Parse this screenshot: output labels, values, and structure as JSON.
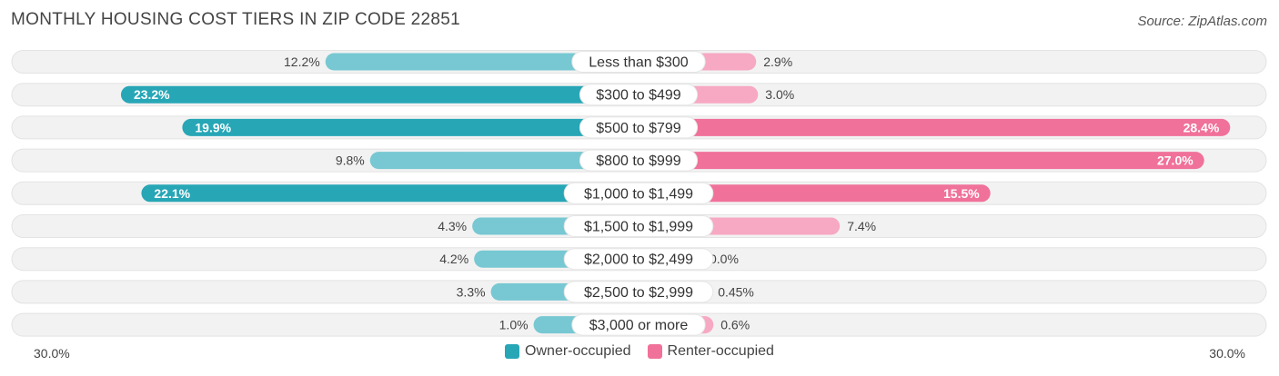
{
  "header": {
    "title": "MONTHLY HOUSING COST TIERS IN ZIP CODE 22851",
    "source": "Source: ZipAtlas.com"
  },
  "colors": {
    "owner_strong": "#27a6b6",
    "owner_light": "#77c8d2",
    "renter_strong": "#f0719a",
    "renter_light": "#f7a8c2",
    "track": "#f2f2f2"
  },
  "axis": {
    "left_label": "30.0%",
    "right_label": "30.0%"
  },
  "legend": {
    "owner": "Owner-occupied",
    "renter": "Renter-occupied"
  },
  "chart_data": {
    "type": "bar",
    "title": "MONTHLY HOUSING COST TIERS IN ZIP CODE 22851",
    "orientation": "diverging-horizontal",
    "xlim": [
      -30,
      30
    ],
    "categories": [
      "Less than $300",
      "$300 to $499",
      "$500 to $799",
      "$800 to $999",
      "$1,000 to $1,499",
      "$1,500 to $1,999",
      "$2,000 to $2,499",
      "$2,500 to $2,999",
      "$3,000 or more"
    ],
    "series": [
      {
        "name": "Owner-occupied",
        "values": [
          12.2,
          23.2,
          19.9,
          9.8,
          22.1,
          4.3,
          4.2,
          3.3,
          1.0
        ],
        "labels": [
          "12.2%",
          "23.2%",
          "19.9%",
          "9.8%",
          "22.1%",
          "4.3%",
          "4.2%",
          "3.3%",
          "1.0%"
        ]
      },
      {
        "name": "Renter-occupied",
        "values": [
          2.9,
          3.0,
          28.4,
          27.0,
          15.5,
          7.4,
          0.0,
          0.45,
          0.6
        ],
        "labels": [
          "2.9%",
          "3.0%",
          "28.4%",
          "27.0%",
          "15.5%",
          "7.4%",
          "0.0%",
          "0.45%",
          "0.6%"
        ]
      }
    ]
  }
}
